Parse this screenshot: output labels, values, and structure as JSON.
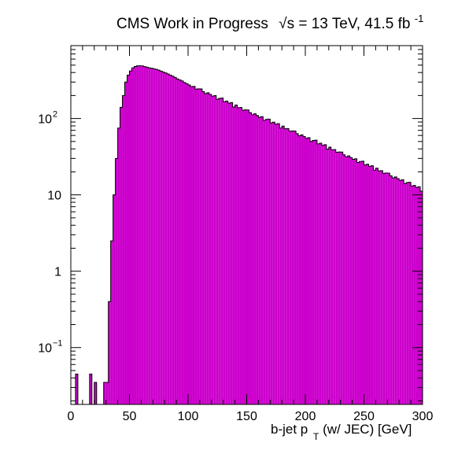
{
  "chart_data": {
    "type": "bar",
    "title": "CMS Work in Progress",
    "title_energy": "√s = 13 TeV, 41.5 fb",
    "title_energy_sup": "-1",
    "xlabel": "b-jet p",
    "xlabel_sub": "T",
    "xlabel_suffix": " (w/ JEC) [GeV]",
    "xlim": [
      0,
      300
    ],
    "ylim": [
      0.018,
      900
    ],
    "yscale": "log",
    "bin_width": 2,
    "fill_color": "#cc00cc",
    "line_color": "#000000",
    "x_ticks": [
      "0",
      "50",
      "100",
      "150",
      "200",
      "250",
      "300"
    ],
    "y_ticks": [
      {
        "value": 0.1,
        "base": "10",
        "exp": "−1"
      },
      {
        "value": 1,
        "base": "1",
        "exp": ""
      },
      {
        "value": 10,
        "base": "10",
        "exp": ""
      },
      {
        "value": 100,
        "base": "10",
        "exp": "2"
      }
    ],
    "series": [
      {
        "bins": [
          [
            4,
            0.045
          ],
          [
            16,
            0.045
          ],
          [
            20,
            0.035
          ],
          [
            28,
            0.035
          ],
          [
            30,
            0.035
          ],
          [
            32,
            0.4
          ],
          [
            34,
            2.5
          ],
          [
            36,
            10
          ],
          [
            38,
            30
          ],
          [
            40,
            75
          ],
          [
            42,
            140
          ],
          [
            44,
            200
          ],
          [
            46,
            300
          ],
          [
            48,
            370
          ],
          [
            50,
            420
          ],
          [
            52,
            460
          ],
          [
            54,
            480
          ],
          [
            56,
            490
          ],
          [
            58,
            490
          ],
          [
            60,
            488
          ],
          [
            62,
            478
          ],
          [
            64,
            470
          ],
          [
            66,
            460
          ],
          [
            68,
            455
          ],
          [
            70,
            447
          ],
          [
            72,
            440
          ],
          [
            74,
            430
          ],
          [
            76,
            418
          ],
          [
            78,
            405
          ],
          [
            80,
            395
          ],
          [
            82,
            383
          ],
          [
            84,
            370
          ],
          [
            86,
            358
          ],
          [
            88,
            345
          ],
          [
            90,
            330
          ],
          [
            92,
            320
          ],
          [
            94,
            310
          ],
          [
            96,
            296
          ],
          [
            98,
            286
          ],
          [
            100,
            275
          ]
        ],
        "decay": {
          "from": 100,
          "to": 300,
          "y_start": 275,
          "y_end": 11.5
        },
        "fluctuation_pct": [
          3,
          -2,
          2,
          -3,
          1,
          4,
          -1,
          -4,
          2,
          0,
          -2,
          3,
          -5,
          1,
          5,
          -3,
          2,
          -1,
          4,
          -6
        ]
      }
    ]
  }
}
